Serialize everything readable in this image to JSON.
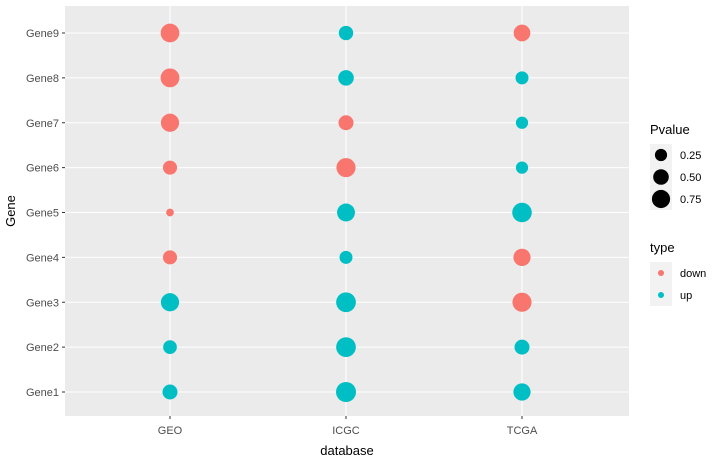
{
  "chart_data": {
    "type": "scatter",
    "xlabel": "database",
    "ylabel": "Gene",
    "categories_x": [
      "GEO",
      "ICGC",
      "TCGA"
    ],
    "categories_y": [
      "Gene1",
      "Gene2",
      "Gene3",
      "Gene4",
      "Gene5",
      "Gene6",
      "Gene7",
      "Gene8",
      "Gene9"
    ],
    "colors": {
      "down": "#F8766D",
      "up": "#00BFC4"
    },
    "points": [
      {
        "x": "GEO",
        "y": "Gene1",
        "pvalue": 0.45,
        "type": "up"
      },
      {
        "x": "GEO",
        "y": "Gene2",
        "pvalue": 0.35,
        "type": "up"
      },
      {
        "x": "GEO",
        "y": "Gene3",
        "pvalue": 0.75,
        "type": "up"
      },
      {
        "x": "GEO",
        "y": "Gene4",
        "pvalue": 0.38,
        "type": "down"
      },
      {
        "x": "GEO",
        "y": "Gene5",
        "pvalue": 0.05,
        "type": "down"
      },
      {
        "x": "GEO",
        "y": "Gene6",
        "pvalue": 0.38,
        "type": "down"
      },
      {
        "x": "GEO",
        "y": "Gene7",
        "pvalue": 0.75,
        "type": "down"
      },
      {
        "x": "GEO",
        "y": "Gene8",
        "pvalue": 0.82,
        "type": "down"
      },
      {
        "x": "GEO",
        "y": "Gene9",
        "pvalue": 0.8,
        "type": "down"
      },
      {
        "x": "ICGC",
        "y": "Gene1",
        "pvalue": 0.95,
        "type": "up"
      },
      {
        "x": "ICGC",
        "y": "Gene2",
        "pvalue": 0.92,
        "type": "up"
      },
      {
        "x": "ICGC",
        "y": "Gene3",
        "pvalue": 0.92,
        "type": "up"
      },
      {
        "x": "ICGC",
        "y": "Gene4",
        "pvalue": 0.3,
        "type": "up"
      },
      {
        "x": "ICGC",
        "y": "Gene5",
        "pvalue": 0.72,
        "type": "up"
      },
      {
        "x": "ICGC",
        "y": "Gene6",
        "pvalue": 0.85,
        "type": "down"
      },
      {
        "x": "ICGC",
        "y": "Gene7",
        "pvalue": 0.45,
        "type": "down"
      },
      {
        "x": "ICGC",
        "y": "Gene8",
        "pvalue": 0.5,
        "type": "up"
      },
      {
        "x": "ICGC",
        "y": "Gene9",
        "pvalue": 0.4,
        "type": "up"
      },
      {
        "x": "TCGA",
        "y": "Gene1",
        "pvalue": 0.65,
        "type": "up"
      },
      {
        "x": "TCGA",
        "y": "Gene2",
        "pvalue": 0.45,
        "type": "up"
      },
      {
        "x": "TCGA",
        "y": "Gene3",
        "pvalue": 0.85,
        "type": "down"
      },
      {
        "x": "TCGA",
        "y": "Gene4",
        "pvalue": 0.65,
        "type": "down"
      },
      {
        "x": "TCGA",
        "y": "Gene5",
        "pvalue": 0.9,
        "type": "up"
      },
      {
        "x": "TCGA",
        "y": "Gene6",
        "pvalue": 0.25,
        "type": "up"
      },
      {
        "x": "TCGA",
        "y": "Gene7",
        "pvalue": 0.25,
        "type": "up"
      },
      {
        "x": "TCGA",
        "y": "Gene8",
        "pvalue": 0.3,
        "type": "up"
      },
      {
        "x": "TCGA",
        "y": "Gene9",
        "pvalue": 0.6,
        "type": "down"
      }
    ],
    "legend": {
      "placement": "right",
      "size": {
        "title": "Pvalue",
        "entries": [
          {
            "label": "0.25",
            "value": 0.25
          },
          {
            "label": "0.50",
            "value": 0.5
          },
          {
            "label": "0.75",
            "value": 0.75
          }
        ]
      },
      "color": {
        "title": "type",
        "entries": [
          {
            "label": "down",
            "key": "down"
          },
          {
            "label": "up",
            "key": "up"
          }
        ]
      }
    },
    "grid": true
  }
}
